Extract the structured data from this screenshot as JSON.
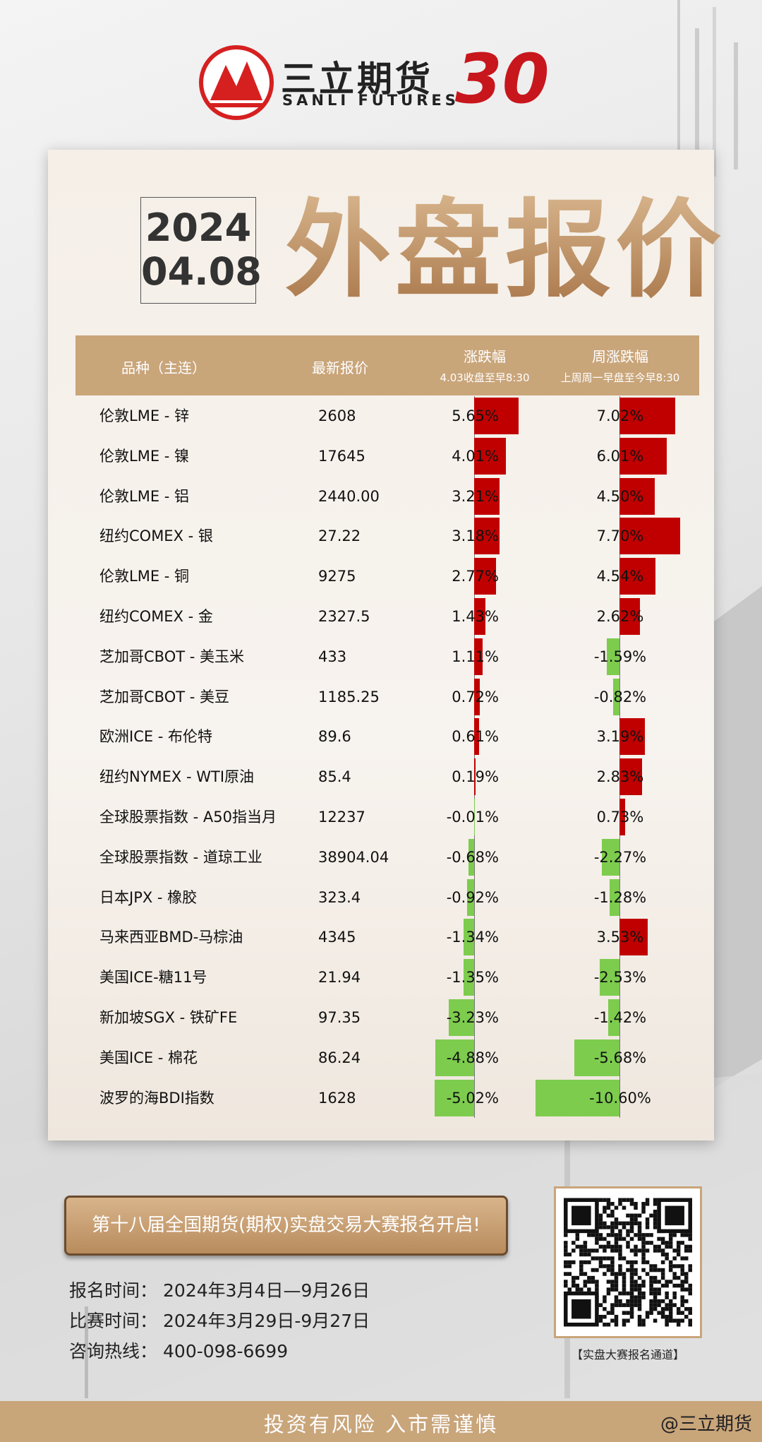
{
  "header": {
    "brand_cn": "三立期货",
    "brand_en": "SANLI FUTURES",
    "anniversary": "30"
  },
  "date": {
    "year": "2024",
    "month_day": "04.08"
  },
  "title": "外盘报价",
  "table": {
    "columns": [
      "品种（主连）",
      "最新报价",
      {
        "title": "涨跌幅",
        "note": "4.03收盘至早8:30"
      },
      {
        "title": "周涨跌幅",
        "note": "上周周一早盘至今早8:30"
      }
    ],
    "rows": [
      {
        "name": "伦敦LME - 锌",
        "price": "2608",
        "change": {
          "value": 5.65,
          "label": "5.65%"
        },
        "week": {
          "value": 7.02,
          "label": "7.02%"
        }
      },
      {
        "name": "伦敦LME - 镍",
        "price": "17645",
        "change": {
          "value": 4.01,
          "label": "4.01%"
        },
        "week": {
          "value": 6.01,
          "label": "6.01%"
        }
      },
      {
        "name": "伦敦LME - 铝",
        "price": "2440.00",
        "change": {
          "value": 3.21,
          "label": "3.21%"
        },
        "week": {
          "value": 4.5,
          "label": "4.50%"
        }
      },
      {
        "name": "纽约COMEX - 银",
        "price": "27.22",
        "change": {
          "value": 3.18,
          "label": "3.18%"
        },
        "week": {
          "value": 7.7,
          "label": "7.70%"
        }
      },
      {
        "name": "伦敦LME - 铜",
        "price": "9275",
        "change": {
          "value": 2.77,
          "label": "2.77%"
        },
        "week": {
          "value": 4.54,
          "label": "4.54%"
        }
      },
      {
        "name": "纽约COMEX - 金",
        "price": "2327.5",
        "change": {
          "value": 1.43,
          "label": "1.43%"
        },
        "week": {
          "value": 2.62,
          "label": "2.62%"
        }
      },
      {
        "name": "芝加哥CBOT - 美玉米",
        "price": "433",
        "change": {
          "value": 1.11,
          "label": "1.11%"
        },
        "week": {
          "value": -1.59,
          "label": "-1.59%"
        }
      },
      {
        "name": "芝加哥CBOT - 美豆",
        "price": "1185.25",
        "change": {
          "value": 0.72,
          "label": "0.72%"
        },
        "week": {
          "value": -0.82,
          "label": "-0.82%"
        }
      },
      {
        "name": "欧洲ICE - 布伦特",
        "price": "89.6",
        "change": {
          "value": 0.61,
          "label": "0.61%"
        },
        "week": {
          "value": 3.19,
          "label": "3.19%"
        }
      },
      {
        "name": "纽约NYMEX - WTI原油",
        "price": "85.4",
        "change": {
          "value": 0.19,
          "label": "0.19%"
        },
        "week": {
          "value": 2.83,
          "label": "2.83%"
        }
      },
      {
        "name": "全球股票指数 - A50指当月",
        "price": "12237",
        "change": {
          "value": -0.01,
          "label": "-0.01%"
        },
        "week": {
          "value": 0.73,
          "label": "0.73%"
        }
      },
      {
        "name": "全球股票指数 - 道琼工业",
        "price": "38904.04",
        "change": {
          "value": -0.68,
          "label": "-0.68%"
        },
        "week": {
          "value": -2.27,
          "label": "-2.27%"
        }
      },
      {
        "name": "日本JPX - 橡胶",
        "price": "323.4",
        "change": {
          "value": -0.92,
          "label": "-0.92%"
        },
        "week": {
          "value": -1.28,
          "label": "-1.28%"
        }
      },
      {
        "name": "马来西亚BMD-马棕油",
        "price": "4345",
        "change": {
          "value": -1.34,
          "label": "-1.34%"
        },
        "week": {
          "value": 3.53,
          "label": "3.53%"
        }
      },
      {
        "name": "美国ICE-糖11号",
        "price": "21.94",
        "change": {
          "value": -1.35,
          "label": "-1.35%"
        },
        "week": {
          "value": -2.53,
          "label": "-2.53%"
        }
      },
      {
        "name": "新加坡SGX - 铁矿FE",
        "price": "97.35",
        "change": {
          "value": -3.23,
          "label": "-3.23%"
        },
        "week": {
          "value": -1.42,
          "label": "-1.42%"
        }
      },
      {
        "name": "美国ICE - 棉花",
        "price": "86.24",
        "change": {
          "value": -4.88,
          "label": "-4.88%"
        },
        "week": {
          "value": -5.68,
          "label": "-5.68%"
        }
      },
      {
        "name": "波罗的海BDI指数",
        "price": "1628",
        "change": {
          "value": -5.02,
          "label": "-5.02%"
        },
        "week": {
          "value": -10.6,
          "label": "-10.60%"
        }
      }
    ]
  },
  "contest": {
    "banner": "第十八届全国期货(期权)实盘交易大赛报名开启!",
    "info": [
      {
        "label": "报名时间：",
        "value": "2024年3月4日—9月26日"
      },
      {
        "label": "比赛时间：",
        "value": "2024年3月29日-9月27日"
      },
      {
        "label": "咨询热线：",
        "value": "400-098-6699"
      }
    ],
    "qr_caption": "【实盘大赛报名通道】"
  },
  "footer": {
    "risk": "投资有风险 入市需谨慎",
    "handle": "@三立期货"
  }
}
